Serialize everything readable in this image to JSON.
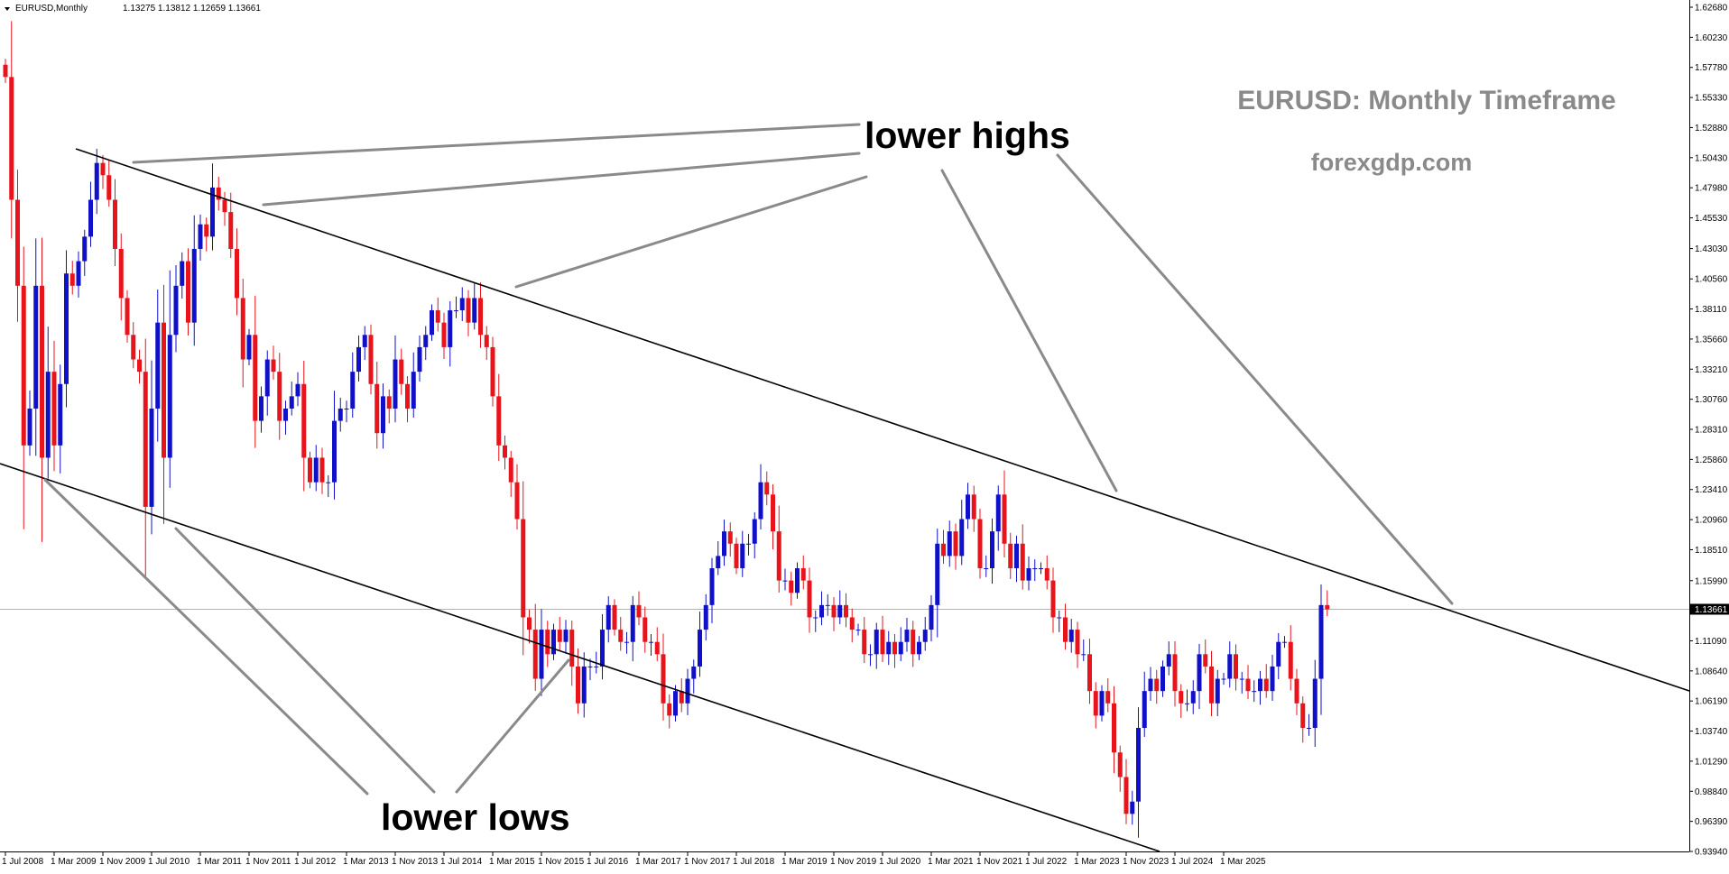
{
  "header": {
    "symbol": "EURUSD,Monthly",
    "ohlc": "1.13275 1.13812 1.12659 1.13661"
  },
  "annotations": {
    "title": "EURUSD: Monthly Timeframe",
    "site": "forexgdp.com",
    "lower_highs": "lower highs",
    "lower_lows": "lower lows"
  },
  "colors": {
    "bull": "#1010c8",
    "bear": "#e8141c",
    "trendline": "#000000",
    "pointer": "#8a8a8a",
    "price_line": "#a8b4c4",
    "title_text": "#8a8a8a"
  },
  "chart_data": {
    "type": "candlestick",
    "title": "EURUSD: Monthly Timeframe",
    "xlabel": "",
    "ylabel": "",
    "ylim": [
      0.9394,
      1.6268
    ],
    "x_start": "2008-07",
    "current_price": 1.13661,
    "y_ticks": [
      "1.62680",
      "1.60230",
      "1.57780",
      "1.55330",
      "1.52880",
      "1.50430",
      "1.47980",
      "1.45530",
      "1.43030",
      "1.40560",
      "1.38110",
      "1.35660",
      "1.33210",
      "1.30760",
      "1.28310",
      "1.25860",
      "1.23410",
      "1.20960",
      "1.18510",
      "1.15990",
      "1.13661",
      "1.11090",
      "1.08640",
      "1.06190",
      "1.03740",
      "1.01290",
      "0.98840",
      "0.96390",
      "0.93940"
    ],
    "x_ticks": [
      "1 Jul 2008",
      "1 Mar 2009",
      "1 Nov 2009",
      "1 Jul 2010",
      "1 Mar 2011",
      "1 Nov 2011",
      "1 Jul 2012",
      "1 Mar 2013",
      "1 Nov 2013",
      "1 Jul 2014",
      "1 Mar 2015",
      "1 Nov 2015",
      "1 Jul 2016",
      "1 Mar 2017",
      "1 Nov 2017",
      "1 Jul 2018",
      "1 Mar 2019",
      "1 Nov 2019",
      "1 Jul 2020",
      "1 Mar 2021",
      "1 Nov 2021",
      "1 Jul 2022",
      "1 Mar 2023",
      "1 Nov 2023",
      "1 Jul 2024",
      "1 Mar 2025"
    ],
    "closes": [
      1.57,
      1.47,
      1.4,
      1.27,
      1.3,
      1.4,
      1.26,
      1.33,
      1.27,
      1.32,
      1.41,
      1.4,
      1.42,
      1.44,
      1.47,
      1.5,
      1.49,
      1.47,
      1.43,
      1.39,
      1.36,
      1.34,
      1.33,
      1.22,
      1.3,
      1.37,
      1.26,
      1.36,
      1.4,
      1.42,
      1.37,
      1.43,
      1.45,
      1.44,
      1.48,
      1.47,
      1.46,
      1.43,
      1.39,
      1.34,
      1.36,
      1.29,
      1.31,
      1.34,
      1.33,
      1.29,
      1.3,
      1.31,
      1.32,
      1.26,
      1.24,
      1.26,
      1.24,
      1.24,
      1.29,
      1.3,
      1.3,
      1.33,
      1.35,
      1.36,
      1.32,
      1.28,
      1.31,
      1.3,
      1.34,
      1.32,
      1.3,
      1.33,
      1.35,
      1.36,
      1.38,
      1.37,
      1.35,
      1.38,
      1.38,
      1.39,
      1.37,
      1.39,
      1.36,
      1.35,
      1.31,
      1.27,
      1.26,
      1.24,
      1.21,
      1.13,
      1.12,
      1.08,
      1.12,
      1.1,
      1.12,
      1.11,
      1.12,
      1.09,
      1.06,
      1.09,
      1.09,
      1.09,
      1.12,
      1.14,
      1.12,
      1.11,
      1.11,
      1.14,
      1.13,
      1.11,
      1.11,
      1.1,
      1.06,
      1.05,
      1.07,
      1.06,
      1.08,
      1.09,
      1.12,
      1.14,
      1.17,
      1.18,
      1.2,
      1.19,
      1.17,
      1.19,
      1.19,
      1.21,
      1.24,
      1.23,
      1.2,
      1.16,
      1.16,
      1.15,
      1.17,
      1.16,
      1.13,
      1.13,
      1.14,
      1.14,
      1.13,
      1.14,
      1.13,
      1.12,
      1.12,
      1.1,
      1.1,
      1.12,
      1.1,
      1.11,
      1.1,
      1.11,
      1.12,
      1.1,
      1.11,
      1.12,
      1.14,
      1.19,
      1.18,
      1.2,
      1.18,
      1.21,
      1.23,
      1.21,
      1.17,
      1.17,
      1.2,
      1.23,
      1.19,
      1.17,
      1.19,
      1.16,
      1.17,
      1.17,
      1.17,
      1.16,
      1.13,
      1.13,
      1.11,
      1.12,
      1.1,
      1.1,
      1.07,
      1.05,
      1.07,
      1.06,
      1.02,
      1.0,
      0.97,
      0.98,
      1.04,
      1.07,
      1.08,
      1.07,
      1.09,
      1.1,
      1.07,
      1.06,
      1.06,
      1.07,
      1.1,
      1.09,
      1.06,
      1.08,
      1.08,
      1.1,
      1.08,
      1.08,
      1.07,
      1.07,
      1.08,
      1.07,
      1.09,
      1.11,
      1.11,
      1.08,
      1.06,
      1.04,
      1.04,
      1.08,
      1.14,
      1.1366
    ]
  }
}
